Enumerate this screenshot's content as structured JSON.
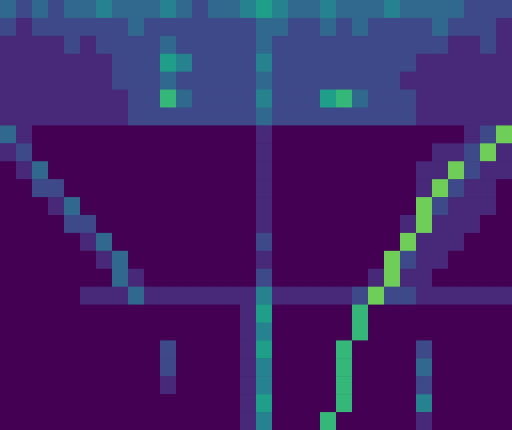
{
  "chart_data": {
    "type": "heatmap",
    "tick_labels": false,
    "grid": false,
    "zlim": [
      0,
      9
    ],
    "cells": [
      [
        3,
        2,
        3,
        2,
        3,
        3,
        4,
        3,
        3,
        3,
        4,
        3,
        2,
        3,
        3,
        4,
        5,
        4,
        3,
        3,
        4,
        3,
        3,
        3,
        4,
        3,
        3,
        3,
        3,
        2,
        2,
        2
      ],
      [
        2,
        1,
        2,
        2,
        2,
        2,
        2,
        2,
        3,
        2,
        2,
        2,
        2,
        2,
        2,
        2,
        3,
        3,
        2,
        2,
        3,
        2,
        3,
        2,
        2,
        2,
        2,
        3,
        2,
        2,
        2,
        1
      ],
      [
        1,
        1,
        1,
        1,
        2,
        1,
        2,
        2,
        2,
        2,
        3,
        2,
        2,
        2,
        2,
        2,
        3,
        2,
        2,
        2,
        2,
        2,
        2,
        2,
        2,
        2,
        2,
        2,
        1,
        1,
        2,
        1
      ],
      [
        1,
        1,
        1,
        1,
        1,
        1,
        1,
        2,
        2,
        2,
        5,
        4,
        2,
        2,
        2,
        2,
        4,
        2,
        2,
        2,
        2,
        2,
        2,
        2,
        2,
        2,
        1,
        1,
        1,
        1,
        1,
        1
      ],
      [
        1,
        1,
        1,
        1,
        1,
        1,
        1,
        2,
        2,
        2,
        3,
        2,
        2,
        2,
        2,
        2,
        3,
        2,
        2,
        2,
        2,
        2,
        2,
        2,
        2,
        1,
        1,
        1,
        1,
        1,
        1,
        1
      ],
      [
        1,
        1,
        1,
        1,
        1,
        1,
        1,
        1,
        2,
        2,
        6,
        3,
        2,
        2,
        2,
        2,
        4,
        2,
        2,
        2,
        5,
        6,
        3,
        2,
        2,
        2,
        1,
        1,
        1,
        1,
        1,
        1
      ],
      [
        1,
        1,
        1,
        1,
        1,
        1,
        1,
        1,
        2,
        2,
        2,
        2,
        2,
        2,
        2,
        2,
        3,
        2,
        2,
        2,
        2,
        2,
        2,
        2,
        2,
        2,
        1,
        1,
        1,
        1,
        1,
        1
      ],
      [
        3,
        1,
        0,
        0,
        0,
        0,
        0,
        0,
        0,
        0,
        0,
        0,
        0,
        0,
        0,
        0,
        1,
        0,
        0,
        0,
        0,
        0,
        0,
        0,
        0,
        0,
        0,
        0,
        0,
        1,
        2,
        7
      ],
      [
        1,
        2,
        0,
        0,
        0,
        0,
        0,
        0,
        0,
        0,
        0,
        0,
        0,
        0,
        0,
        0,
        1,
        0,
        0,
        0,
        0,
        0,
        0,
        0,
        0,
        0,
        0,
        1,
        1,
        2,
        7,
        1
      ],
      [
        0,
        1,
        3,
        0,
        0,
        0,
        0,
        0,
        0,
        0,
        0,
        0,
        0,
        0,
        0,
        0,
        1,
        0,
        0,
        0,
        0,
        0,
        0,
        0,
        0,
        0,
        1,
        1,
        7,
        2,
        1,
        1
      ],
      [
        0,
        0,
        2,
        2,
        0,
        0,
        0,
        0,
        0,
        0,
        0,
        0,
        0,
        0,
        0,
        0,
        1,
        0,
        0,
        0,
        0,
        0,
        0,
        0,
        0,
        0,
        1,
        7,
        2,
        1,
        1,
        0
      ],
      [
        0,
        0,
        0,
        1,
        3,
        0,
        0,
        0,
        0,
        0,
        0,
        0,
        0,
        0,
        0,
        0,
        1,
        0,
        0,
        0,
        0,
        0,
        0,
        0,
        0,
        0,
        7,
        2,
        1,
        1,
        1,
        0
      ],
      [
        0,
        0,
        0,
        0,
        2,
        2,
        0,
        0,
        0,
        0,
        0,
        0,
        0,
        0,
        0,
        0,
        1,
        0,
        0,
        0,
        0,
        0,
        0,
        0,
        0,
        1,
        7,
        1,
        1,
        1,
        0,
        0
      ],
      [
        0,
        0,
        0,
        0,
        0,
        1,
        3,
        0,
        0,
        0,
        0,
        0,
        0,
        0,
        0,
        0,
        2,
        0,
        0,
        0,
        0,
        0,
        0,
        0,
        0,
        7,
        1,
        1,
        1,
        0,
        0,
        0
      ],
      [
        0,
        0,
        0,
        0,
        0,
        0,
        1,
        3,
        0,
        0,
        0,
        0,
        0,
        0,
        0,
        0,
        1,
        0,
        0,
        0,
        0,
        0,
        0,
        0,
        7,
        2,
        1,
        1,
        0,
        0,
        0,
        0
      ],
      [
        0,
        0,
        0,
        0,
        0,
        0,
        0,
        3,
        1,
        0,
        0,
        0,
        0,
        0,
        0,
        0,
        2,
        0,
        0,
        0,
        0,
        0,
        0,
        1,
        7,
        1,
        1,
        0,
        0,
        0,
        0,
        0
      ],
      [
        0,
        0,
        0,
        0,
        0,
        1,
        1,
        1,
        3,
        1,
        1,
        1,
        1,
        1,
        1,
        1,
        4,
        1,
        1,
        1,
        1,
        1,
        2,
        7,
        2,
        2,
        1,
        1,
        1,
        1,
        1,
        1
      ],
      [
        0,
        0,
        0,
        0,
        0,
        0,
        0,
        0,
        0,
        0,
        0,
        0,
        0,
        0,
        0,
        1,
        5,
        0,
        0,
        0,
        0,
        0,
        6,
        0,
        0,
        0,
        0,
        0,
        0,
        0,
        0,
        0
      ],
      [
        0,
        0,
        0,
        0,
        0,
        0,
        0,
        0,
        0,
        0,
        0,
        0,
        0,
        0,
        0,
        1,
        4,
        0,
        0,
        0,
        0,
        0,
        6,
        0,
        0,
        0,
        0,
        0,
        0,
        0,
        0,
        0
      ],
      [
        0,
        0,
        0,
        0,
        0,
        0,
        0,
        0,
        0,
        0,
        2,
        0,
        0,
        0,
        0,
        1,
        5,
        0,
        0,
        0,
        0,
        6,
        0,
        0,
        0,
        0,
        2,
        0,
        0,
        0,
        0,
        0
      ],
      [
        0,
        0,
        0,
        0,
        0,
        0,
        0,
        0,
        0,
        0,
        2,
        0,
        0,
        0,
        0,
        1,
        4,
        0,
        0,
        0,
        0,
        6,
        0,
        0,
        0,
        0,
        3,
        0,
        0,
        0,
        0,
        0
      ],
      [
        0,
        0,
        0,
        0,
        0,
        0,
        0,
        0,
        0,
        0,
        1,
        0,
        0,
        0,
        0,
        1,
        4,
        0,
        0,
        0,
        0,
        6,
        0,
        0,
        0,
        0,
        2,
        0,
        0,
        0,
        0,
        0
      ],
      [
        0,
        0,
        0,
        0,
        0,
        0,
        0,
        0,
        0,
        0,
        0,
        0,
        0,
        0,
        0,
        1,
        5,
        0,
        0,
        0,
        0,
        6,
        0,
        0,
        0,
        0,
        4,
        0,
        0,
        0,
        0,
        0
      ],
      [
        0,
        0,
        0,
        0,
        0,
        0,
        0,
        0,
        0,
        0,
        0,
        0,
        0,
        0,
        0,
        1,
        4,
        0,
        0,
        0,
        6,
        0,
        0,
        0,
        0,
        0,
        1,
        0,
        0,
        0,
        0,
        0
      ]
    ]
  }
}
